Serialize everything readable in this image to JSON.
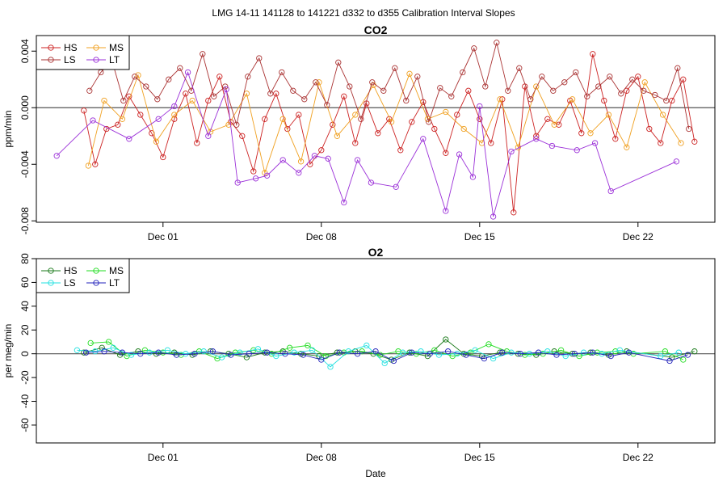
{
  "page_title": "LMG   14-11    141128 to 141221    d332 to d355   Calibration Interval Slopes",
  "chart_data": [
    {
      "type": "line",
      "title": "CO2",
      "xlabel": "",
      "ylabel": "ppm/min",
      "xlim": [
        -2.6,
        27.4
      ],
      "ylim": [
        -0.0081,
        0.0051
      ],
      "x_ticks": [
        {
          "v": 3,
          "label": "Dec 01"
        },
        {
          "v": 10,
          "label": "Dec 08"
        },
        {
          "v": 17,
          "label": "Dec 15"
        },
        {
          "v": 24,
          "label": "Dec 22"
        }
      ],
      "y_ticks": [
        {
          "v": -0.008,
          "label": "-0.008"
        },
        {
          "v": -0.004,
          "label": "-0.004"
        },
        {
          "v": 0,
          "label": "0.000"
        },
        {
          "v": 0.004,
          "label": "0.004"
        }
      ],
      "legend_position": "top-left",
      "legend": [
        {
          "name": "HS",
          "color": "#cc2222"
        },
        {
          "name": "MS",
          "color": "#f0a020"
        },
        {
          "name": "LS",
          "color": "#aa3333"
        },
        {
          "name": "LT",
          "color": "#9b30d8"
        }
      ],
      "series": [
        {
          "name": "HS",
          "color": "#cc2222",
          "x": [
            -0.5,
            0,
            0.5,
            1,
            1.5,
            2,
            2.5,
            3,
            3.5,
            4,
            4.5,
            5,
            5.5,
            6,
            6.5,
            7,
            7.5,
            8,
            8.5,
            9,
            9.5,
            10,
            10.5,
            11,
            11.5,
            12,
            12.5,
            13,
            13.5,
            14,
            14.5,
            15,
            15.5,
            16,
            16.5,
            17,
            17.5,
            18,
            18.5,
            19,
            19.5,
            20,
            20.5,
            21,
            21.5,
            22,
            22.5,
            23,
            23.5,
            24,
            24.5,
            25,
            25.5,
            26,
            26.5
          ],
          "y": [
            -0.0002,
            -0.004,
            -0.0015,
            -0.0012,
            0.0008,
            -0.0005,
            -0.0018,
            -0.0035,
            -0.0008,
            0.001,
            -0.0025,
            0.0005,
            0.0022,
            -0.001,
            -0.002,
            -0.0045,
            -0.0008,
            0.001,
            -0.0015,
            -0.0005,
            -0.004,
            -0.003,
            -0.0012,
            0.0008,
            -0.0025,
            0.0003,
            -0.0018,
            -0.0008,
            -0.003,
            -0.001,
            0.0004,
            -0.0015,
            -0.0032,
            -0.0005,
            0.0012,
            -0.0008,
            -0.0025,
            0.0006,
            -0.0074,
            0.0015,
            -0.002,
            -0.0008,
            -0.0012,
            0.0005,
            -0.0018,
            0.0038,
            0.0005,
            -0.0022,
            0.0012,
            0.0022,
            -0.0015,
            -0.0025,
            0.0005,
            0.002,
            -0.0024
          ]
        },
        {
          "name": "MS",
          "color": "#f0a020",
          "x": [
            -0.3,
            0.4,
            1.2,
            1.9,
            2.7,
            3.5,
            4.3,
            5.1,
            5.9,
            6.7,
            7.5,
            8.3,
            9.1,
            9.9,
            10.7,
            11.5,
            12.3,
            13.1,
            13.9,
            14.7,
            15.5,
            16.3,
            17.1,
            17.9,
            18.7,
            19.5,
            20.3,
            21.1,
            21.9,
            22.7,
            23.5,
            24.3,
            25.1,
            25.9
          ],
          "y": [
            -0.0041,
            0.0005,
            -0.0008,
            0.0023,
            -0.0024,
            -0.0005,
            0.0005,
            -0.0017,
            -0.0012,
            0.001,
            -0.0046,
            -0.0008,
            -0.0038,
            0.0018,
            -0.002,
            -0.0005,
            0.0016,
            -0.001,
            0.0024,
            -0.0008,
            -0.0003,
            -0.0015,
            -0.0025,
            0.0006,
            -0.0028,
            0.0015,
            -0.0012,
            0.0006,
            -0.0018,
            -0.0005,
            -0.0028,
            0.0018,
            -0.0005,
            -0.0025
          ]
        },
        {
          "name": "LS",
          "color": "#aa3333",
          "x": [
            -0.25,
            0.25,
            0.75,
            1.25,
            1.75,
            2.25,
            2.75,
            3.25,
            3.75,
            4.25,
            4.75,
            5.25,
            5.75,
            6.25,
            6.75,
            7.25,
            7.75,
            8.25,
            8.75,
            9.25,
            9.75,
            10.25,
            10.75,
            11.25,
            11.75,
            12.25,
            12.75,
            13.25,
            13.75,
            14.25,
            14.75,
            15.25,
            15.75,
            16.25,
            16.75,
            17.25,
            17.75,
            18.25,
            18.75,
            19.25,
            19.75,
            20.25,
            20.75,
            21.25,
            21.75,
            22.25,
            22.75,
            23.25,
            23.75,
            24.25,
            24.75,
            25.25,
            25.75,
            26.25
          ],
          "y": [
            0.0012,
            0.0025,
            0.0033,
            0.0005,
            0.0022,
            0.0015,
            0.0006,
            0.002,
            0.0028,
            0.0012,
            0.0038,
            0.0008,
            0.0015,
            -0.0012,
            0.0022,
            0.0035,
            0.001,
            0.0025,
            0.0012,
            0.0006,
            0.0018,
            0.0002,
            0.0032,
            0.0015,
            -0.0008,
            0.0018,
            0.0012,
            0.0028,
            0.0005,
            0.0022,
            -0.001,
            0.0014,
            0.0008,
            0.0025,
            0.0042,
            0.0015,
            0.0046,
            0.0012,
            0.0028,
            0.0006,
            0.0022,
            0.0012,
            0.0018,
            0.0025,
            0.0008,
            0.0015,
            0.0022,
            0.001,
            0.002,
            0.0012,
            0.0009,
            0.0005,
            0.0028,
            -0.0015
          ]
        },
        {
          "name": "LT",
          "color": "#9b30d8",
          "x": [
            -1.7,
            -0.1,
            1.5,
            2.8,
            3.5,
            4.1,
            5.0,
            5.8,
            6.3,
            7.1,
            7.6,
            8.3,
            9.0,
            9.7,
            10.3,
            11.0,
            11.6,
            12.2,
            13.3,
            14.5,
            15.5,
            16.1,
            16.7,
            17.0,
            17.6,
            18.4,
            19.5,
            20.2,
            21.3,
            22.1,
            22.8,
            25.7
          ],
          "y": [
            -0.0034,
            -0.0009,
            -0.0022,
            -0.0008,
            0.0001,
            0.0025,
            -0.002,
            0.0013,
            -0.0053,
            -0.005,
            -0.0048,
            -0.0037,
            -0.0046,
            -0.0034,
            -0.0036,
            -0.0067,
            -0.0037,
            -0.0053,
            -0.0056,
            -0.0022,
            -0.0073,
            -0.0033,
            -0.0049,
            0.0001,
            -0.0077,
            -0.0031,
            -0.0022,
            -0.0027,
            -0.003,
            -0.0025,
            -0.0059,
            -0.0038
          ]
        }
      ]
    },
    {
      "type": "line",
      "title": "O2",
      "xlabel": "Date",
      "ylabel": "per meg/min",
      "xlim": [
        -2.6,
        27.4
      ],
      "ylim": [
        -75,
        80
      ],
      "x_ticks": [
        {
          "v": 3,
          "label": "Dec 01"
        },
        {
          "v": 10,
          "label": "Dec 08"
        },
        {
          "v": 17,
          "label": "Dec 15"
        },
        {
          "v": 24,
          "label": "Dec 22"
        }
      ],
      "y_ticks": [
        {
          "v": -60,
          "label": "-60"
        },
        {
          "v": -40,
          "label": "-40"
        },
        {
          "v": -20,
          "label": "-20"
        },
        {
          "v": 0,
          "label": "0"
        },
        {
          "v": 20,
          "label": "20"
        },
        {
          "v": 40,
          "label": "40"
        },
        {
          "v": 60,
          "label": "60"
        },
        {
          "v": 80,
          "label": "80"
        }
      ],
      "legend_position": "top-left",
      "legend": [
        {
          "name": "HS",
          "color": "#1a7a1a"
        },
        {
          "name": "MS",
          "color": "#22dd22"
        },
        {
          "name": "LS",
          "color": "#22e0e0"
        },
        {
          "name": "LT",
          "color": "#2222bb"
        }
      ],
      "series": [
        {
          "name": "HS",
          "color": "#1a7a1a",
          "x": [
            -0.5,
            0.3,
            1.1,
            1.9,
            2.7,
            3.5,
            4.3,
            5.1,
            5.9,
            6.7,
            7.5,
            8.3,
            9.1,
            9.9,
            10.7,
            11.5,
            12.3,
            13.1,
            13.9,
            14.7,
            15.5,
            16.3,
            17.1,
            17.9,
            18.7,
            19.5,
            20.3,
            21.1,
            21.9,
            22.7,
            23.5,
            25.5,
            26.5
          ],
          "y": [
            1,
            5,
            -1,
            2,
            0,
            1,
            -1,
            2,
            0,
            -3,
            1,
            2,
            0,
            -2,
            1,
            2,
            0,
            -5,
            1,
            -2,
            12,
            0,
            -2,
            1,
            0,
            -1,
            2,
            0,
            1,
            -1,
            2,
            -3,
            2
          ]
        },
        {
          "name": "MS",
          "color": "#22dd22",
          "x": [
            -0.2,
            0.6,
            1.4,
            2.2,
            3.0,
            3.8,
            4.6,
            5.4,
            6.2,
            7.0,
            7.8,
            8.6,
            9.4,
            10.2,
            11.0,
            11.8,
            12.6,
            13.4,
            14.2,
            15.0,
            15.8,
            16.6,
            17.4,
            18.2,
            19.0,
            19.8,
            20.6,
            21.4,
            22.2,
            23.0,
            23.8,
            25.2,
            26.0
          ],
          "y": [
            9,
            10,
            -2,
            3,
            1,
            -1,
            2,
            -4,
            1,
            3,
            0,
            5,
            7,
            -2,
            1,
            2,
            -1,
            2,
            0,
            3,
            -2,
            1,
            8,
            2,
            -1,
            0,
            3,
            -2,
            1,
            2,
            0,
            2,
            -5
          ]
        },
        {
          "name": "LS",
          "color": "#22e0e0",
          "x": [
            -0.8,
            0.0,
            0.8,
            1.6,
            2.4,
            3.2,
            4.0,
            4.8,
            5.6,
            6.4,
            7.2,
            8.0,
            8.8,
            9.6,
            10.4,
            11.2,
            12.0,
            12.8,
            13.6,
            14.4,
            15.2,
            16.0,
            16.8,
            17.6,
            18.4,
            19.2,
            20.0,
            20.8,
            21.6,
            22.4,
            23.2,
            25.0,
            25.8
          ],
          "y": [
            3,
            2,
            5,
            -1,
            1,
            3,
            0,
            2,
            -3,
            1,
            4,
            -2,
            1,
            3,
            -11,
            2,
            7,
            -8,
            1,
            2,
            -1,
            0,
            3,
            -4,
            1,
            0,
            2,
            -2,
            1,
            0,
            3,
            -2,
            1
          ]
        },
        {
          "name": "LT",
          "color": "#2222bb",
          "x": [
            -0.4,
            0.4,
            1.2,
            2.0,
            2.8,
            3.6,
            4.4,
            5.2,
            6.0,
            6.8,
            7.6,
            8.4,
            9.2,
            10.0,
            10.8,
            11.6,
            12.4,
            13.2,
            14.0,
            14.8,
            15.6,
            16.4,
            17.2,
            18.0,
            18.8,
            19.6,
            20.4,
            21.2,
            22.0,
            22.8,
            23.6,
            25.4,
            26.2
          ],
          "y": [
            1,
            2,
            1,
            0,
            1,
            -1,
            0,
            2,
            -1,
            0,
            1,
            0,
            -1,
            -5,
            1,
            0,
            2,
            -6,
            1,
            0,
            2,
            -1,
            -4,
            1,
            0,
            1,
            -1,
            0,
            1,
            -2,
            1,
            -6,
            -1
          ]
        }
      ]
    }
  ]
}
